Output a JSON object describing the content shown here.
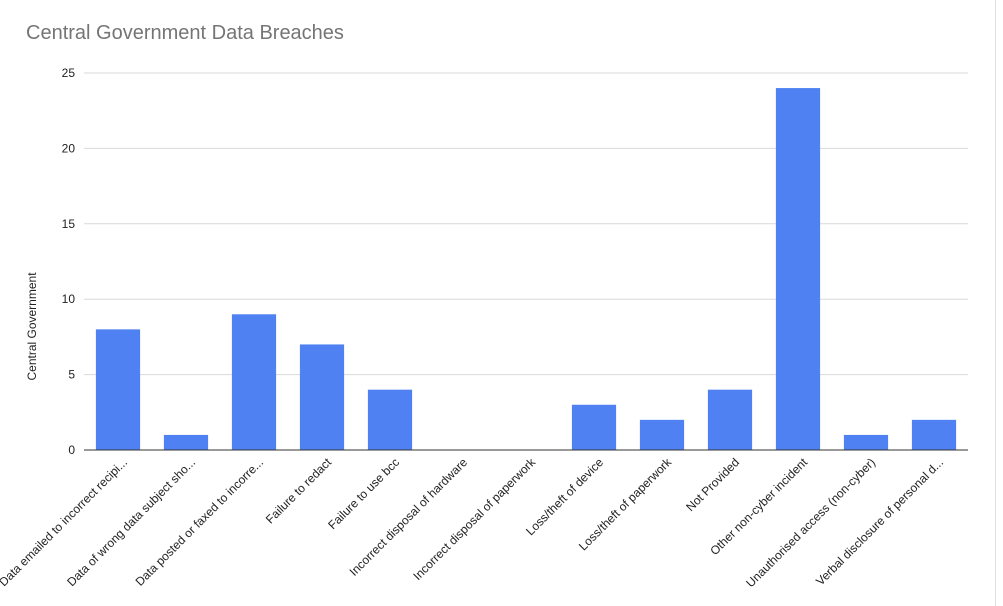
{
  "chart_data": {
    "type": "bar",
    "title": "Central Government Data Breaches",
    "xlabel": "",
    "ylabel": "Central Government",
    "categories": [
      "Data emailed to incorrect recipi...",
      "Data of wrong data subject sho...",
      "Data posted or faxed to incorre...",
      "Failure to redact",
      "Failure to use bcc",
      "Incorrect disposal of hardware",
      "Incorrect disposal of paperwork",
      "Loss/theft of device",
      "Loss/theft of paperwork",
      "Not Provided",
      "Other non-cyber incident",
      "Unauthorised access (non-cyber)",
      "Verbal disclosure of personal d..."
    ],
    "values": [
      8,
      1,
      9,
      7,
      4,
      0,
      0,
      3,
      2,
      4,
      24,
      1,
      2
    ],
    "ylim": [
      0,
      25
    ],
    "yticks": [
      "0",
      "5",
      "10",
      "15",
      "20",
      "25"
    ],
    "grid": true,
    "legend": "none",
    "colors": {
      "bar": "#4f81f2",
      "grid": "#d9d9d9",
      "axis": "#333333",
      "title": "#757575",
      "text": "#222222"
    }
  }
}
